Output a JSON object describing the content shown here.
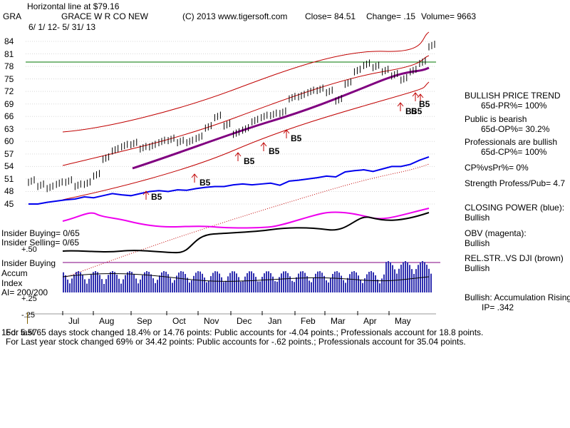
{
  "header": {
    "hline": "Horizontal line at $79.16",
    "ticker": "GRA",
    "company": "GRACE W R CO NEW",
    "copyright": "(C) 2013 www.tigersoft.com",
    "close": "Close=  84.51",
    "change": "Change= .15",
    "volume": "Volume= 9663",
    "daterange": "6/ 1/ 12-  5/ 31/ 13"
  },
  "panel": {
    "p1_title": "BULLISH PRICE TREND",
    "p1_value": "65d-PR%= 100%",
    "p2_title": "Public is bearish",
    "p2_value": "65d-OP%= 30.2%",
    "p3_title": "Professionals are bullish",
    "p3_value": "65d-CP%= 100%",
    "p4": "CP%vsPr%=  0%",
    "p5": "Strength Profess/Pub= 4.7",
    "p6_title": "CLOSING POWER (blue):",
    "p6_value": "Bullish",
    "p7_title": "OBV (magenta):",
    "p7_value": "Bullish",
    "p8_title": "REL.STR..VS DJI (brown)",
    "p8_value": "Bullish",
    "p9_title": "Bullish: Accumulation Rising",
    "p9_value": "IP=  .342"
  },
  "left_labels": {
    "insider_buying": "Insider Buying= 0/65",
    "insider_selling": "Insider Selling= 0/65",
    "plus50": "+.50",
    "insider_buying2": "Insider Buying",
    "accum": "Accum",
    "index": "Index",
    "ai": "AI= 200/200",
    "plus25": "+.25",
    "minus25": "-.25"
  },
  "footer": {
    "line1": "For last 65 days stock changed  18.4% or  14.76 points:  Public accounts for -4.04 points.;  Professionals account for  18.8 points.",
    "line1_prefix": "15d: 5.57",
    "line2": "For Last year stock changed  69% or  34.42 points:  Public accounts for -.62 points.;  Professionals account for  35.04 points."
  },
  "signals": [
    "B5",
    "B5",
    "B5",
    "B5",
    "B5",
    "B5",
    "B5",
    "B5"
  ],
  "chart_data": {
    "type": "line",
    "title": "GRACE W R CO NEW",
    "ylim": [
      45,
      84
    ],
    "hline": 79.16,
    "yticks": [
      84,
      81,
      78,
      75,
      72,
      69,
      66,
      63,
      60,
      57,
      54,
      51,
      48,
      45
    ],
    "months": [
      "Jul",
      "Aug",
      "Sep",
      "Oct",
      "Nov",
      "Dec",
      "Jan",
      "Feb",
      "Mar",
      "Apr",
      "May"
    ],
    "price_x": [
      0,
      6,
      12,
      18,
      24,
      30,
      36,
      42,
      48,
      54,
      60,
      66,
      72,
      78,
      84,
      90,
      96,
      102,
      108,
      114,
      120,
      126,
      132,
      138,
      144,
      150,
      156,
      162,
      168,
      174,
      180,
      186,
      192,
      198,
      204,
      210,
      216,
      222,
      228,
      234,
      240,
      246,
      252,
      258
    ],
    "price": [
      50.5,
      49.5,
      49,
      50,
      50.5,
      49.5,
      50,
      52,
      56,
      58,
      59,
      59.5,
      58.5,
      59,
      60,
      60.5,
      60,
      60,
      61,
      63.5,
      66,
      64,
      62,
      63,
      65,
      66,
      66.5,
      67,
      70.5,
      71,
      72,
      72.5,
      72,
      70,
      74,
      77,
      78.5,
      78,
      77,
      76,
      75,
      77,
      79,
      83
    ],
    "closing_power": [
      45,
      45,
      45.4,
      45.7,
      46,
      46.2,
      46.7,
      46.5,
      47,
      47.5,
      47.2,
      47,
      47.5,
      48,
      48.2,
      48,
      48.4,
      48.3,
      48.7,
      49,
      49.2,
      49.2,
      49.6,
      49.8,
      49.6,
      49.8,
      50,
      49.5,
      50.5,
      50.7,
      51,
      51.3,
      51.7,
      51.5,
      52.7,
      53,
      53.2,
      52.8,
      53.4,
      54,
      54,
      54.5,
      55.5,
      56.3
    ]
  }
}
